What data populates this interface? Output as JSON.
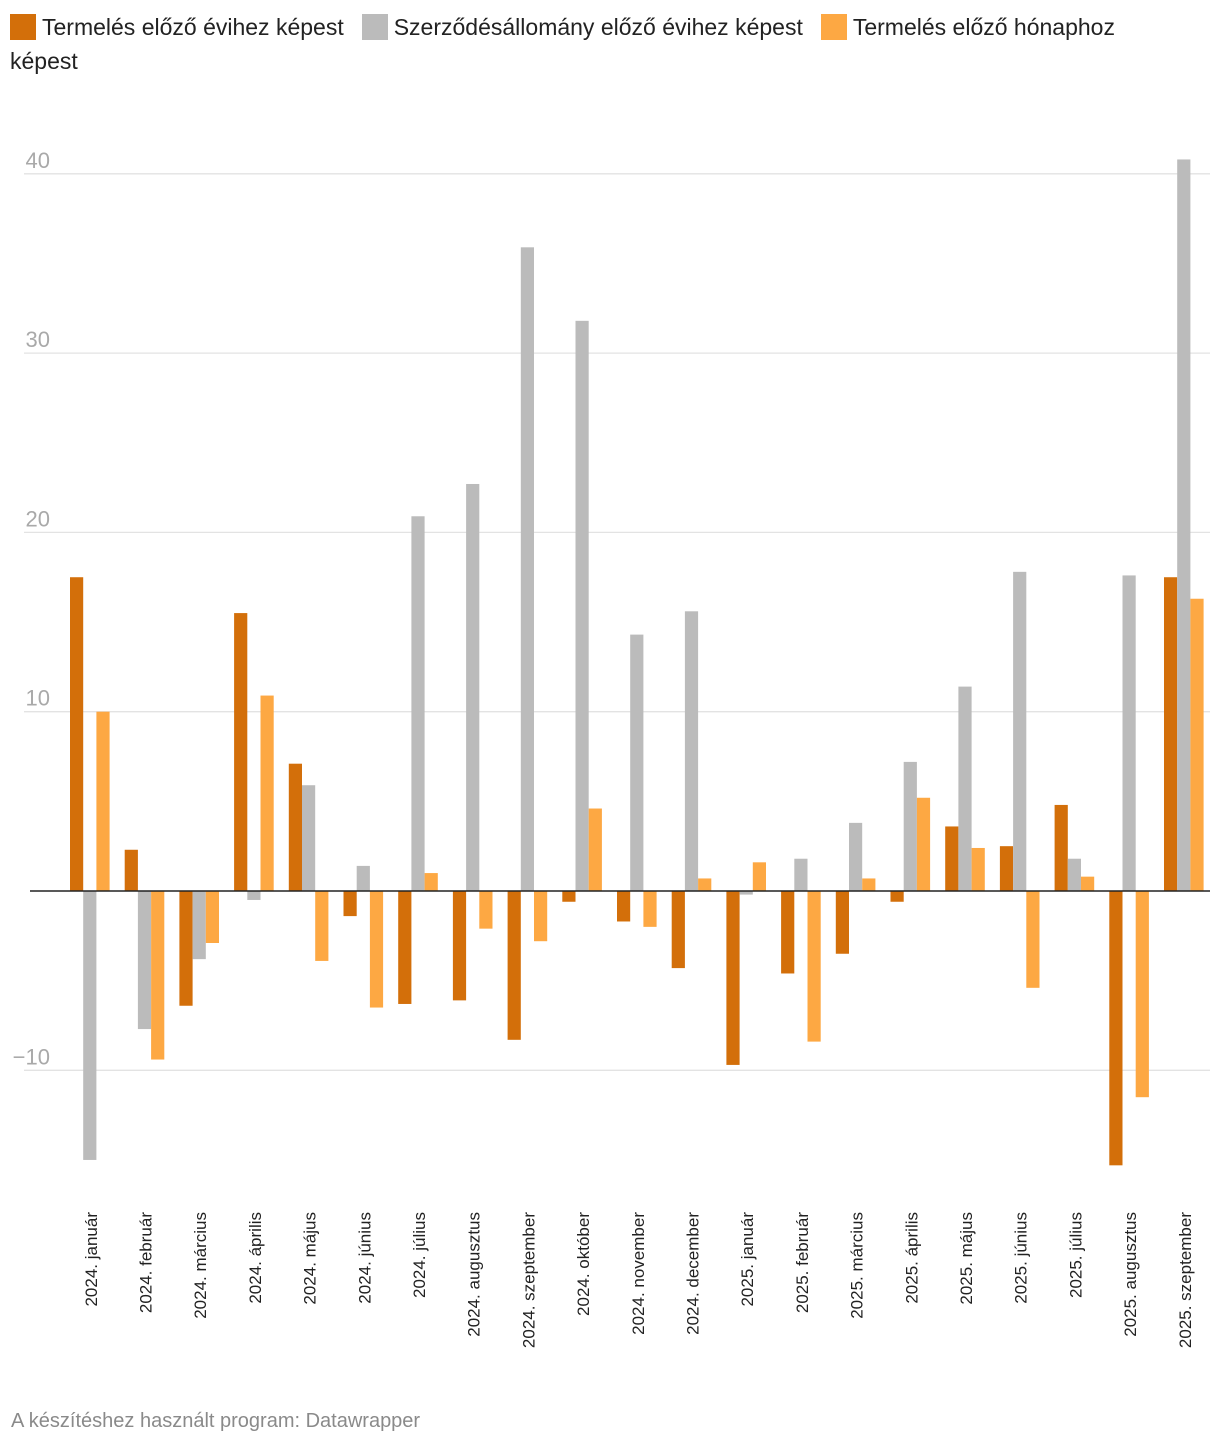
{
  "chart_data": {
    "type": "bar",
    "title": "",
    "xlabel": "",
    "ylabel": "",
    "ylim": [
      -15,
      42
    ],
    "yticks": [
      -10,
      10,
      20,
      30,
      40
    ],
    "ytick_labels": [
      "−10",
      "10",
      "20",
      "30",
      "40"
    ],
    "grid": true,
    "legend_position": "top-left",
    "categories": [
      "2024. január",
      "2024. február",
      "2024. március",
      "2024. április",
      "2024. május",
      "2024. június",
      "2024. július",
      "2024. augusztus",
      "2024. szeptember",
      "2024. október",
      "2024. november",
      "2024. december",
      "2025. január",
      "2025. február",
      "2025. március",
      "2025. április",
      "2025. május",
      "2025. június",
      "2025. július",
      "2025. augusztus",
      "2025. szeptember"
    ],
    "series": [
      {
        "name": "Termelés előző évihez képest",
        "color": "#d36f0a",
        "values": [
          17.5,
          2.3,
          -6.4,
          15.5,
          7.1,
          -1.4,
          -6.3,
          -6.1,
          -8.3,
          -0.6,
          -1.7,
          -4.3,
          -9.7,
          -4.6,
          -3.5,
          -0.6,
          3.6,
          2.5,
          4.8,
          -15.3,
          17.5
        ]
      },
      {
        "name": "Szerződésállomány előző évihez képest",
        "color": "#bbbbbb",
        "values": [
          -15.0,
          -7.7,
          -3.8,
          -0.5,
          5.9,
          1.4,
          20.9,
          22.7,
          35.9,
          31.8,
          14.3,
          15.6,
          -0.2,
          1.8,
          3.8,
          7.2,
          11.4,
          17.8,
          1.8,
          17.6,
          40.8
        ]
      },
      {
        "name": "Termelés előző hónaphoz képest",
        "color": "#fda843",
        "values": [
          10.0,
          -9.4,
          -2.9,
          10.9,
          -3.9,
          -6.5,
          1.0,
          -2.1,
          -2.8,
          4.6,
          -2.0,
          0.7,
          1.6,
          -8.4,
          0.7,
          5.2,
          2.4,
          -5.4,
          0.8,
          -11.5,
          16.3
        ]
      }
    ]
  },
  "footer": {
    "credit": "A készítéshez használt program: Datawrapper"
  }
}
